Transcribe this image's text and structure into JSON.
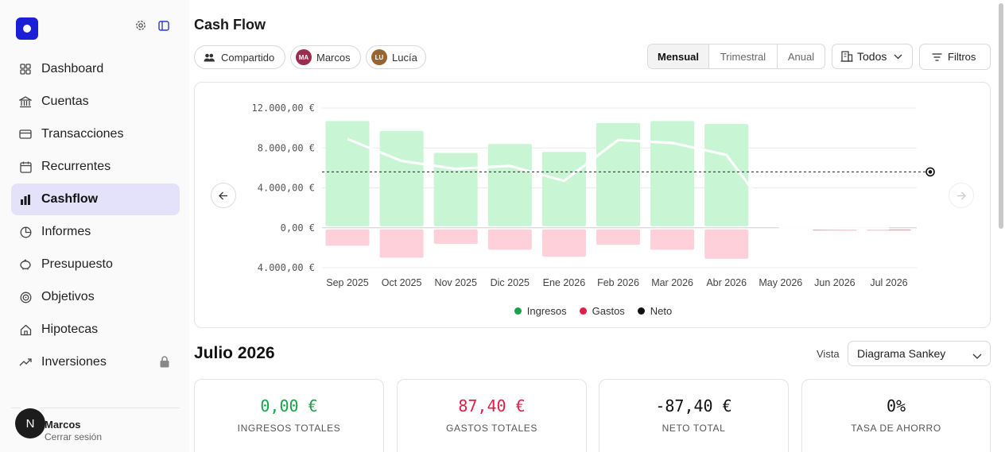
{
  "sidebar": {
    "items": [
      {
        "label": "Dashboard",
        "icon": "dashboard-icon"
      },
      {
        "label": "Cuentas",
        "icon": "bank-icon"
      },
      {
        "label": "Transacciones",
        "icon": "card-icon"
      },
      {
        "label": "Recurrentes",
        "icon": "calendar-icon"
      },
      {
        "label": "Cashflow",
        "icon": "bar-chart-icon",
        "active": true
      },
      {
        "label": "Informes",
        "icon": "pie-chart-icon"
      },
      {
        "label": "Presupuesto",
        "icon": "piggy-bank-icon"
      },
      {
        "label": "Objetivos",
        "icon": "target-icon"
      },
      {
        "label": "Hipotecas",
        "icon": "house-icon"
      },
      {
        "label": "Inversiones",
        "icon": "trending-up-icon",
        "locked": true
      }
    ],
    "user": {
      "initial": "N",
      "name": "Marcos",
      "logout": "Cerrar sesión"
    }
  },
  "header": {
    "title": "Cash Flow",
    "people": [
      {
        "label": "Compartido",
        "icon": "users-icon"
      },
      {
        "label": "Marcos",
        "initials": "MA",
        "color": "#9b2c4f"
      },
      {
        "label": "Lucía",
        "initials": "LU",
        "color": "#9a6430"
      }
    ],
    "periods": [
      "Mensual",
      "Trimestral",
      "Anual"
    ],
    "active_period": "Mensual",
    "accounts_label": "Todos",
    "filters_label": "Filtros"
  },
  "chart_data": {
    "type": "bar",
    "categories": [
      "Sep 2025",
      "Oct 2025",
      "Nov 2025",
      "Dic 2025",
      "Ene 2026",
      "Feb 2026",
      "Mar 2026",
      "Abr 2026",
      "May 2026",
      "Jun 2026",
      "Jul 2026"
    ],
    "y_tick_labels": [
      "12.000,00 €",
      "8.000,00 €",
      "4.000,00 €",
      "0,00 €",
      "4.000,00 €"
    ],
    "ylim": [
      -4000,
      12000
    ],
    "series": [
      {
        "name": "Ingresos",
        "color": "#16a34a",
        "values": [
          10700,
          9700,
          7500,
          8400,
          7600,
          10500,
          10700,
          10400,
          0,
          0,
          0
        ]
      },
      {
        "name": "Gastos",
        "color": "#e11d48",
        "values": [
          -1800,
          -3000,
          -1600,
          -2200,
          -2900,
          -1700,
          -2200,
          -3100,
          0,
          -80,
          -87.4
        ]
      },
      {
        "name": "Neto",
        "color": "#111111",
        "values": [
          8900,
          6700,
          5900,
          6200,
          4700,
          8800,
          8500,
          7300,
          0,
          -80,
          -87.4
        ]
      }
    ],
    "average_line": 5600,
    "legend": "bottom-center",
    "grid": true
  },
  "summary": {
    "month_title": "Julio 2026",
    "vista_label": "Vista",
    "vista_value": "Diagrama Sankey",
    "stats": [
      {
        "value": "0,00 €",
        "label": "INGRESOS TOTALES",
        "color": "#16a34a"
      },
      {
        "value": "87,40 €",
        "label": "GASTOS TOTALES",
        "color": "#e11d48"
      },
      {
        "value": "-87,40 €",
        "label": "NETO TOTAL",
        "color": "#111111"
      },
      {
        "value": "0%",
        "label": "TASA DE AHORRO",
        "color": "#111111"
      }
    ]
  }
}
